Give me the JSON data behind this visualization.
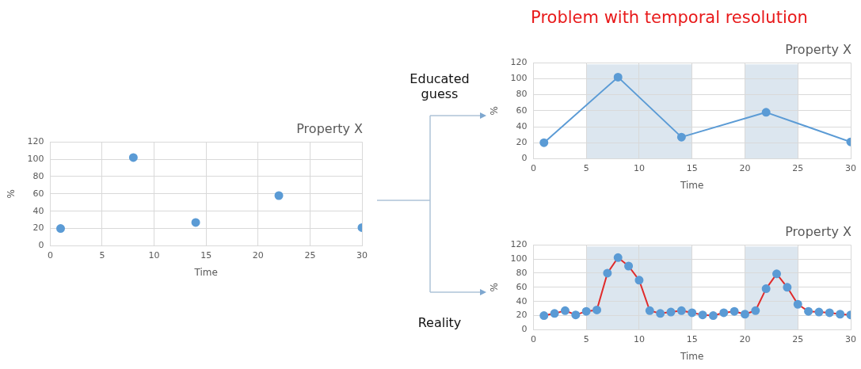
{
  "chart_data": [
    {
      "type": "scatter",
      "title": "Property X",
      "xlabel": "Time",
      "ylabel": "%",
      "x": [
        1,
        8,
        14,
        22,
        30
      ],
      "series": [
        {
          "color": "#5b9bd5",
          "values": [
            20,
            102,
            27,
            58,
            21
          ]
        }
      ],
      "xlim": [
        0,
        30
      ],
      "xticks": [
        0,
        5,
        10,
        15,
        20,
        25,
        30
      ],
      "ylim": [
        0,
        120
      ],
      "yticks": [
        0,
        20,
        40,
        60,
        80,
        100,
        120
      ],
      "grid": true,
      "legend": false,
      "marker": "circle"
    },
    {
      "type": "line",
      "title": "Property X",
      "xlabel": "Time",
      "ylabel": "%",
      "annotations": [
        "Problem with temporal resolution",
        "Educated guess"
      ],
      "x": [
        1,
        8,
        14,
        22,
        30
      ],
      "series": [
        {
          "color": "#5b9bd5",
          "values": [
            20,
            102,
            27,
            58,
            21
          ]
        }
      ],
      "xlim": [
        0,
        30
      ],
      "xticks": [
        0,
        5,
        10,
        15,
        20,
        25,
        30
      ],
      "ylim": [
        0,
        120
      ],
      "yticks": [
        0,
        20,
        40,
        60,
        80,
        100,
        120
      ],
      "grid": true,
      "legend": false,
      "marker": "circle",
      "line_style": "solid",
      "bands": [
        {
          "axis": "x",
          "from": 5,
          "to": 15,
          "color": "#dce6ef"
        },
        {
          "axis": "x",
          "from": 20,
          "to": 25,
          "color": "#dce6ef"
        }
      ]
    },
    {
      "type": "line",
      "title": "Property X",
      "xlabel": "Time",
      "ylabel": "%",
      "annotations": [
        "Reality"
      ],
      "x": [
        1,
        2,
        3,
        4,
        5,
        6,
        7,
        8,
        9,
        10,
        11,
        12,
        13,
        14,
        15,
        16,
        17,
        18,
        19,
        20,
        21,
        22,
        23,
        24,
        25,
        26,
        27,
        28,
        29,
        30
      ],
      "series": [
        {
          "color": "#e02b2b",
          "colors": [
            "#5b9bd5",
            "#5b9bd5",
            "#5b9bd5",
            "#5b9bd5",
            "#5b9bd5",
            "#5b9bd5",
            "#5b9bd5",
            "#5b9bd5",
            "#5b9bd5",
            "#5b9bd5",
            "#5b9bd5",
            "#5b9bd5",
            "#5b9bd5",
            "#5b9bd5",
            "#5b9bd5",
            "#5b9bd5",
            "#5b9bd5",
            "#5b9bd5",
            "#5b9bd5",
            "#5b9bd5",
            "#5b9bd5",
            "#5b9bd5",
            "#5b9bd5",
            "#5b9bd5",
            "#5b9bd5",
            "#5b9bd5",
            "#5b9bd5",
            "#5b9bd5",
            "#5b9bd5",
            "#5b9bd5"
          ],
          "values": [
            20,
            23,
            27,
            21,
            26,
            28,
            80,
            102,
            90,
            70,
            27,
            23,
            25,
            27,
            24,
            21,
            20,
            24,
            26,
            22,
            27,
            58,
            79,
            60,
            36,
            26,
            25,
            24,
            22,
            21
          ]
        }
      ],
      "xlim": [
        0,
        30
      ],
      "xticks": [
        0,
        5,
        10,
        15,
        20,
        25,
        30
      ],
      "ylim": [
        0,
        120
      ],
      "yticks": [
        0,
        20,
        40,
        60,
        80,
        100,
        120
      ],
      "grid": true,
      "legend": false,
      "marker": "circle",
      "line_style": "solid",
      "bands": [
        {
          "axis": "x",
          "from": 5,
          "to": 15,
          "color": "#dce6ef"
        },
        {
          "axis": "x",
          "from": 20,
          "to": 25,
          "color": "#dce6ef"
        }
      ]
    }
  ]
}
